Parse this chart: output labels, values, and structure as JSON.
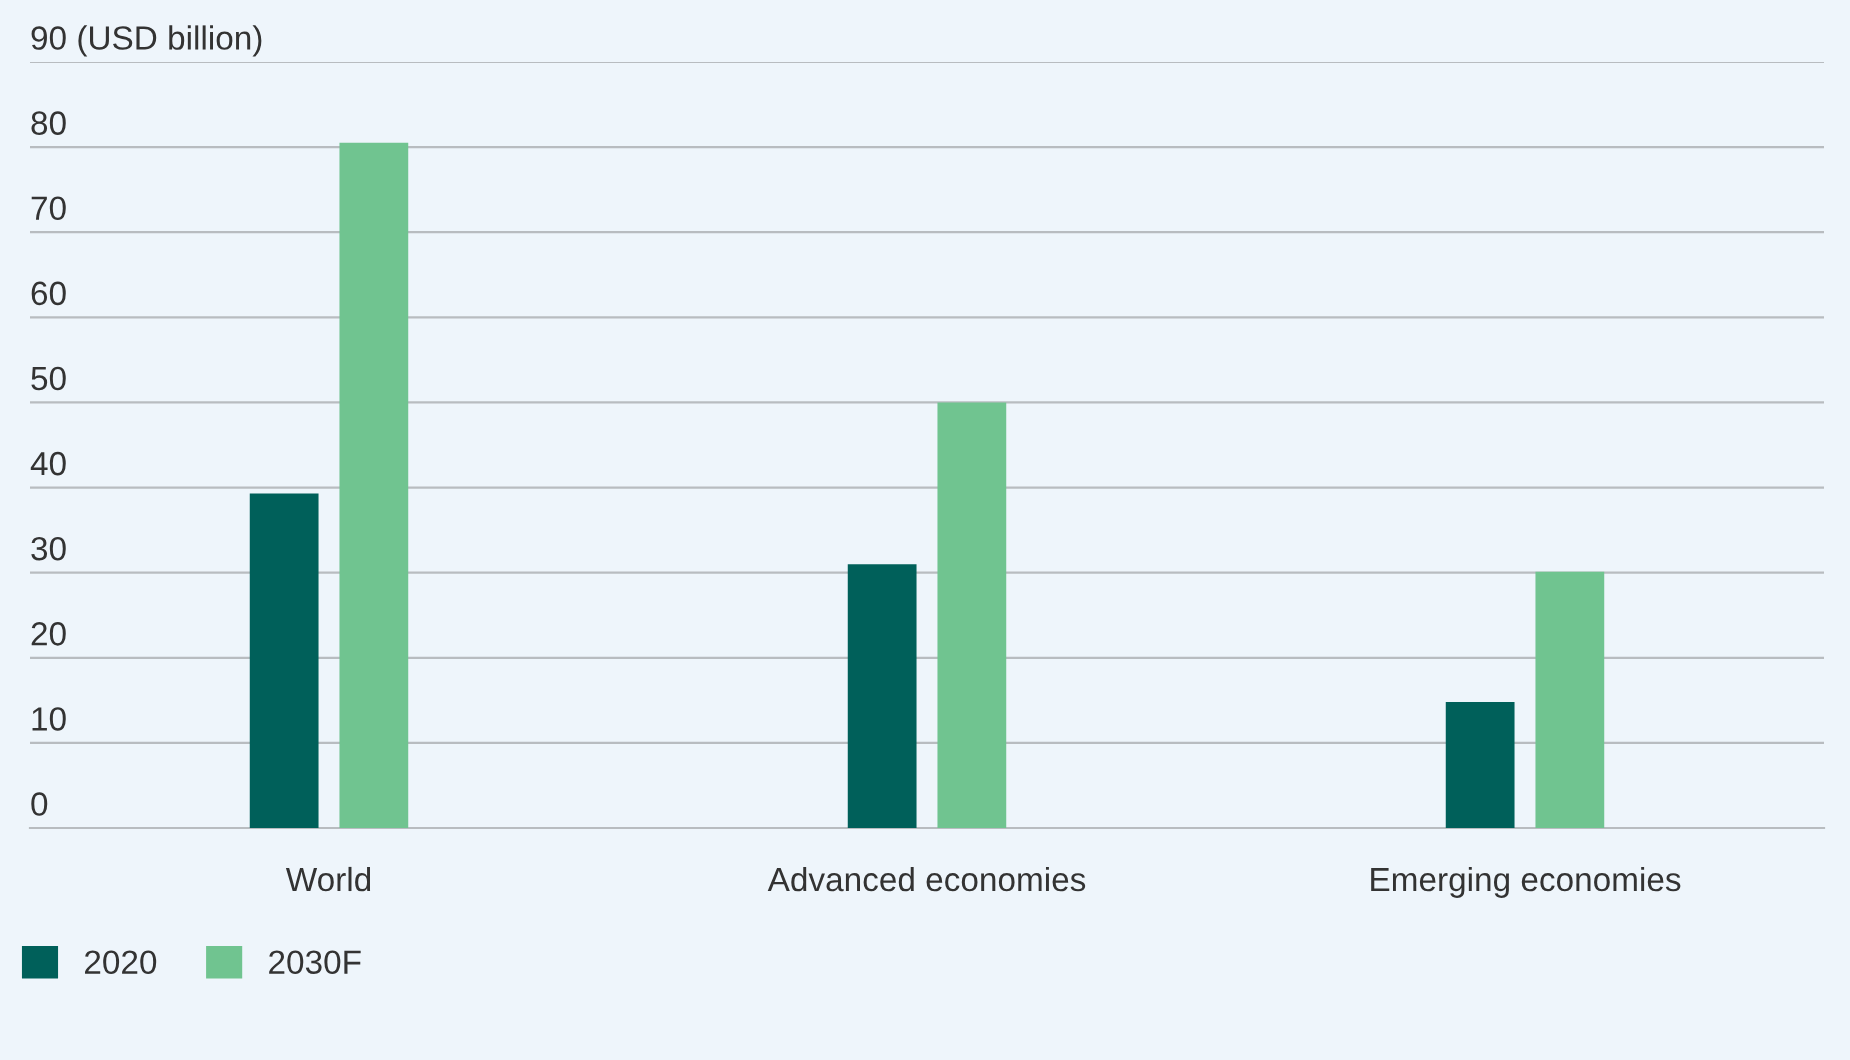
{
  "chart_data": {
    "type": "bar",
    "categories": [
      "World",
      "Advanced economies",
      "Emerging economies"
    ],
    "series": [
      {
        "name": "2020",
        "color": "#00605a",
        "values": [
          39.3,
          31,
          14.8
        ]
      },
      {
        "name": "2030F",
        "color": "#70c490",
        "values": [
          80.5,
          50,
          30.1
        ]
      }
    ],
    "ylim": [
      0,
      90
    ],
    "yticks": [
      0,
      10,
      20,
      30,
      40,
      50,
      60,
      70,
      80,
      {
        "value": 90,
        "label": "90 (USD billion)"
      }
    ],
    "grid": "y",
    "legend": "bottom left"
  }
}
